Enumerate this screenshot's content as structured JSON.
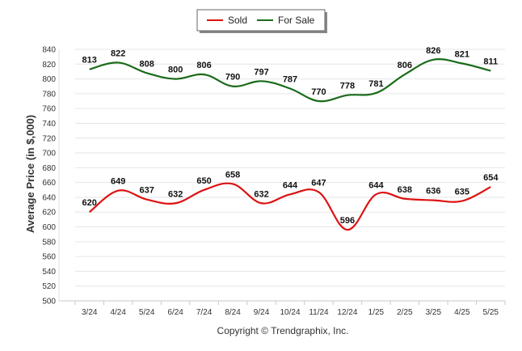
{
  "chart_data": {
    "type": "line",
    "categories": [
      "3/24",
      "4/24",
      "5/24",
      "6/24",
      "7/24",
      "8/24",
      "9/24",
      "10/24",
      "11/24",
      "12/24",
      "1/25",
      "2/25",
      "3/25",
      "4/25",
      "5/25"
    ],
    "series": [
      {
        "name": "Sold",
        "color": "#dd1111",
        "values": [
          620,
          649,
          637,
          632,
          650,
          658,
          632,
          644,
          647,
          596,
          644,
          638,
          636,
          635,
          654
        ]
      },
      {
        "name": "For Sale",
        "color": "#1a6b1a",
        "values": [
          813,
          822,
          808,
          800,
          806,
          790,
          797,
          787,
          770,
          778,
          781,
          806,
          826,
          821,
          811
        ]
      }
    ],
    "ylabel": "Average Price (in $,000)",
    "xlabel": "",
    "ylim": [
      500,
      840
    ],
    "ytick_step": 20,
    "grid": true,
    "legend_position": "top-center"
  },
  "footer": {
    "copyright": "Copyright © Trendgraphix, Inc."
  }
}
